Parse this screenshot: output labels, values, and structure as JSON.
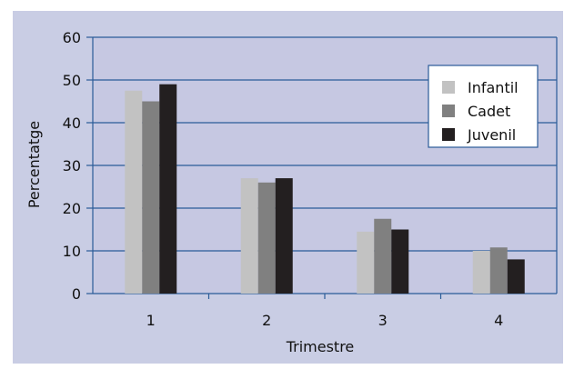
{
  "chart_data": {
    "type": "bar",
    "categories": [
      "1",
      "2",
      "3",
      "4"
    ],
    "series": [
      {
        "name": "Infantil",
        "values": [
          47.5,
          27,
          14.5,
          10
        ]
      },
      {
        "name": "Cadet",
        "values": [
          45,
          26,
          17.5,
          10.8
        ]
      },
      {
        "name": "Juvenil",
        "values": [
          49,
          27,
          15,
          8
        ]
      }
    ],
    "title": "",
    "xlabel": "Trimestre",
    "ylabel": "Percentatge",
    "ylim": [
      0,
      60
    ],
    "yticks": [
      "0",
      "10",
      "20",
      "30",
      "40",
      "50",
      "60"
    ],
    "grid": true,
    "legend_position": "top-right"
  },
  "colors": {
    "panel_background": "#c9cde4",
    "plot_background": "#c6c8e2",
    "grid_and_axis": "#2a5b98",
    "legend_background": "#ffffff",
    "series": [
      "#c2c2c2",
      "#808080",
      "#231f20"
    ]
  }
}
